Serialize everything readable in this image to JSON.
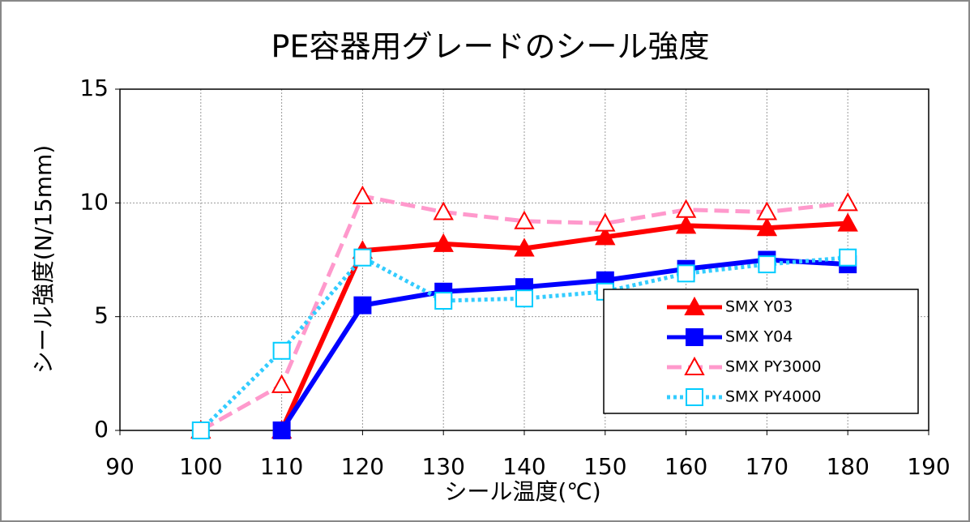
{
  "chart_data": {
    "type": "line",
    "title": "PE容器用グレードのシール強度",
    "x_label": "シール温度(℃)",
    "y_label": "シール強度(N/15mm)",
    "x": [
      100,
      110,
      120,
      130,
      140,
      150,
      160,
      170,
      180
    ],
    "series": [
      {
        "name": "SMX Y03",
        "color": "#ff0000",
        "marker_color": "#ff0000",
        "marker": "triangle",
        "filled": true,
        "dash": "solid",
        "values": [
          null,
          0,
          7.9,
          8.2,
          8.0,
          8.5,
          9.0,
          8.9,
          9.1
        ]
      },
      {
        "name": "SMX Y04",
        "color": "#0000ff",
        "marker_color": "#0000ff",
        "marker": "square",
        "filled": true,
        "dash": "solid",
        "values": [
          null,
          0,
          5.5,
          6.1,
          6.3,
          6.6,
          7.1,
          7.5,
          7.3
        ]
      },
      {
        "name": "SMX PY3000",
        "color": "#ff99cc",
        "marker_color": "#ff0000",
        "marker": "triangle",
        "filled": false,
        "dash": "dashed",
        "values": [
          0,
          2.0,
          10.3,
          9.6,
          9.2,
          9.1,
          9.7,
          9.6,
          10.0
        ]
      },
      {
        "name": "SMX PY4000",
        "color": "#33ccff",
        "marker_color": "#00ccff",
        "marker": "square",
        "filled": false,
        "dash": "dotted",
        "values": [
          0,
          3.5,
          7.6,
          5.7,
          5.8,
          6.1,
          6.9,
          7.3,
          7.6
        ]
      }
    ],
    "xlim": [
      90,
      190
    ],
    "xticks": [
      90,
      100,
      110,
      120,
      130,
      140,
      150,
      160,
      170,
      180,
      190
    ],
    "ylim": [
      0,
      15
    ],
    "yticks": [
      0,
      5,
      10,
      15
    ],
    "grid": true,
    "legend": "lower right"
  }
}
